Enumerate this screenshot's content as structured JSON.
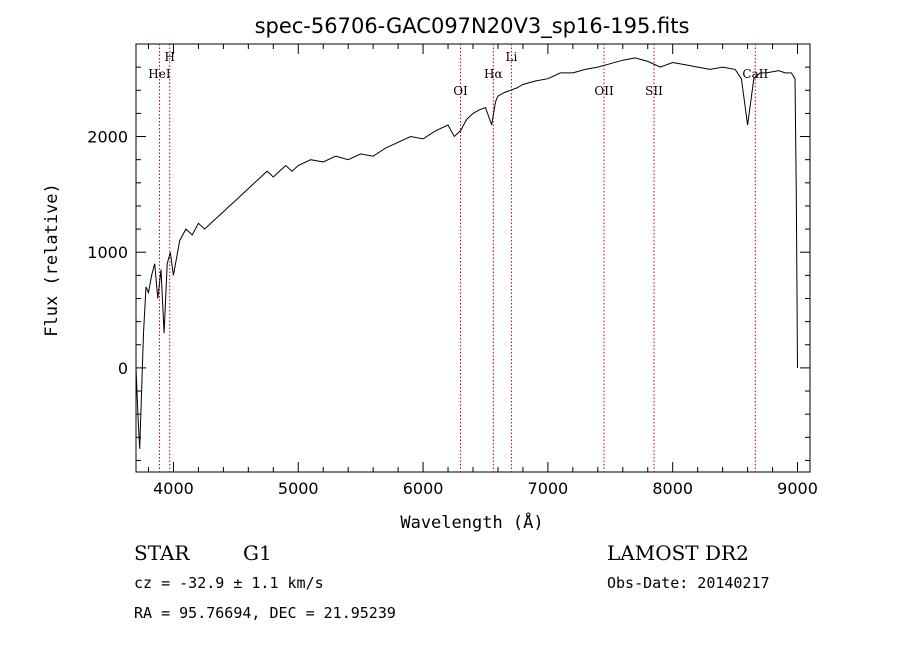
{
  "chart_data": {
    "type": "line",
    "title": "spec-56706-GAC097N20V3_sp16-195.fits",
    "xlabel": "Wavelength (Å)",
    "ylabel": "Flux (relative)",
    "xlim": [
      3700,
      9100
    ],
    "ylim": [
      -900,
      2800
    ],
    "x_ticks": [
      4000,
      5000,
      6000,
      7000,
      8000,
      9000
    ],
    "y_ticks": [
      0,
      1000,
      2000
    ],
    "grid": false,
    "line_color": "#000000",
    "marker_color": "#cc0000",
    "series": [
      {
        "x": [
          3700,
          3715,
          3730,
          3745,
          3760,
          3780,
          3800,
          3825,
          3850,
          3875,
          3900,
          3925,
          3950,
          3975,
          4000,
          4050,
          4100,
          4150,
          4200,
          4250,
          4300,
          4350,
          4400,
          4450,
          4500,
          4550,
          4600,
          4650,
          4700,
          4750,
          4800,
          4850,
          4900,
          4950,
          5000,
          5100,
          5200,
          5300,
          5400,
          5500,
          5600,
          5700,
          5800,
          5900,
          6000,
          6100,
          6200,
          6250,
          6300,
          6350,
          6400,
          6450,
          6500,
          6550,
          6580,
          6600,
          6650,
          6700,
          6750,
          6800,
          6900,
          7000,
          7100,
          7200,
          7300,
          7400,
          7500,
          7600,
          7700,
          7800,
          7900,
          8000,
          8100,
          8200,
          8300,
          8400,
          8500,
          8550,
          8600,
          8650,
          8700,
          8750,
          8800,
          8850,
          8900,
          8950,
          8980,
          8990,
          9000
        ],
        "y": [
          0,
          -400,
          -700,
          -200,
          300,
          700,
          650,
          800,
          900,
          600,
          850,
          300,
          900,
          1000,
          800,
          1100,
          1200,
          1150,
          1250,
          1200,
          1250,
          1300,
          1350,
          1400,
          1450,
          1500,
          1550,
          1600,
          1650,
          1700,
          1650,
          1700,
          1750,
          1700,
          1750,
          1800,
          1780,
          1830,
          1800,
          1850,
          1830,
          1900,
          1950,
          2000,
          1980,
          2050,
          2100,
          2000,
          2050,
          2150,
          2200,
          2230,
          2250,
          2100,
          2300,
          2350,
          2380,
          2400,
          2420,
          2450,
          2480,
          2500,
          2550,
          2550,
          2580,
          2600,
          2630,
          2660,
          2680,
          2650,
          2600,
          2640,
          2620,
          2600,
          2580,
          2600,
          2580,
          2500,
          2100,
          2500,
          2550,
          2550,
          2560,
          2570,
          2550,
          2550,
          2500,
          1500,
          0
        ]
      }
    ],
    "line_markers": [
      {
        "label": "HeI",
        "x": 3888,
        "row": 2
      },
      {
        "label": "H",
        "x": 3970,
        "row": 1
      },
      {
        "label": "OI",
        "x": 6300,
        "row": 3
      },
      {
        "label": "Hα",
        "x": 6563,
        "row": 2
      },
      {
        "label": "Li",
        "x": 6708,
        "row": 1
      },
      {
        "label": "OII",
        "x": 7450,
        "row": 3
      },
      {
        "label": "SII",
        "x": 7850,
        "row": 3
      },
      {
        "label": "CaII",
        "x": 8662,
        "row": 2
      }
    ]
  },
  "footer": {
    "object_class": "STAR",
    "subclass": "G1",
    "survey": "LAMOST DR2",
    "cz": "cz = -32.9 ± 1.1 km/s",
    "obs_date": "Obs-Date: 20140217",
    "radec": "RA =  95.76694, DEC =  21.95239"
  }
}
